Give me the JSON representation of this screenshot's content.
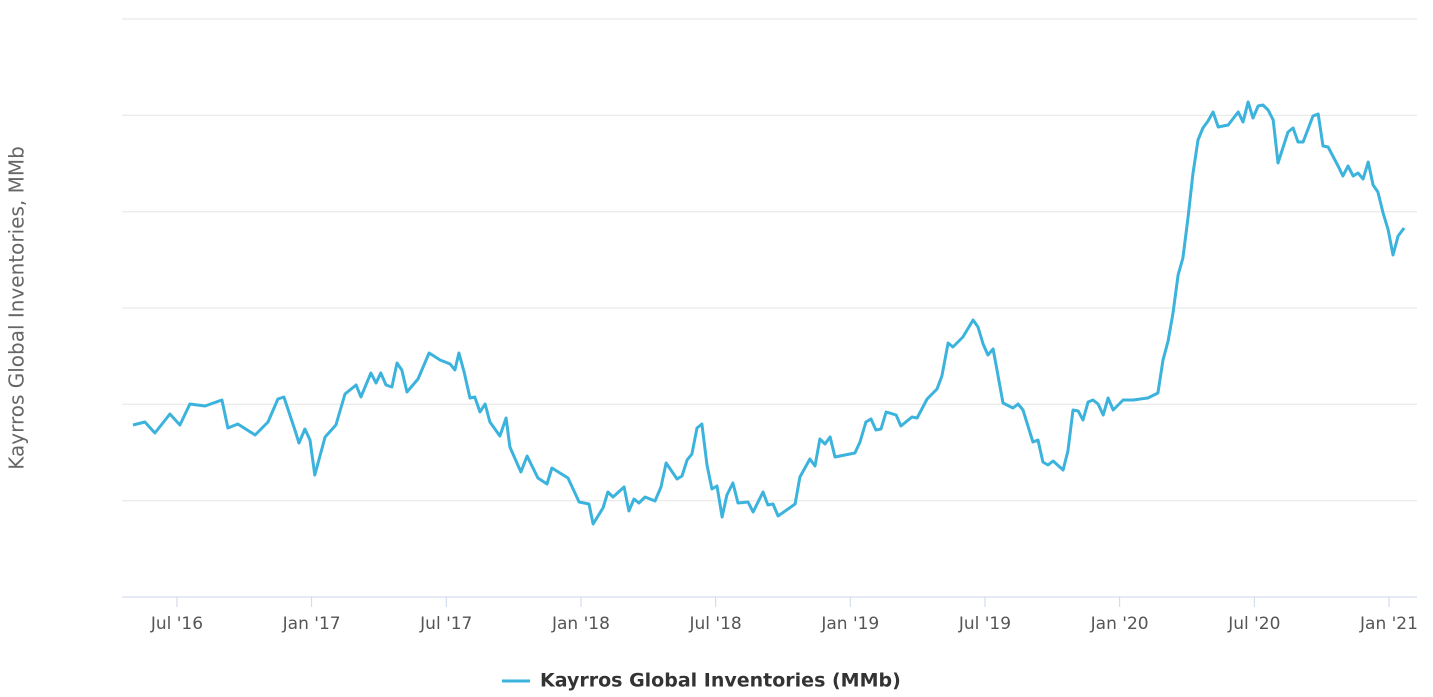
{
  "chart_data": {
    "type": "line",
    "y_label": "Kayrros Global Inventories, MMb",
    "xlim": [
      2016.296,
      2021.104
    ],
    "xticks": [
      {
        "value": 2016.5,
        "label": "Jul '16"
      },
      {
        "value": 2017.0,
        "label": "Jan '17"
      },
      {
        "value": 2017.5,
        "label": "Jul '17"
      },
      {
        "value": 2018.0,
        "label": "Jan '18"
      },
      {
        "value": 2018.5,
        "label": "Jul '18"
      },
      {
        "value": 2019.0,
        "label": "Jan '19"
      },
      {
        "value": 2019.5,
        "label": "Jul '19"
      },
      {
        "value": 2020.0,
        "label": "Jan '20"
      },
      {
        "value": 2020.5,
        "label": "Jul '20"
      },
      {
        "value": 2021.0,
        "label": "Jan '21"
      }
    ],
    "ylim": [
      0,
      578
    ],
    "yticks": [
      0,
      96.3,
      192.7,
      289,
      385.3,
      481.7,
      578
    ],
    "grid": true,
    "legend": "bottom",
    "x": [
      2016.337,
      2016.381,
      2016.418,
      2016.474,
      2016.511,
      2016.548,
      2016.604,
      2016.667,
      2016.689,
      2016.726,
      2016.79,
      2016.838,
      2016.875,
      2016.897,
      2016.938,
      2016.953,
      2016.975,
      2016.994,
      2017.012,
      2017.05,
      2017.09,
      2017.124,
      2017.165,
      2017.183,
      2017.22,
      2017.239,
      2017.257,
      2017.276,
      2017.298,
      2017.317,
      2017.335,
      2017.354,
      2017.395,
      2017.436,
      2017.477,
      2017.514,
      2017.532,
      2017.547,
      2017.566,
      2017.588,
      2017.606,
      2017.625,
      2017.644,
      2017.662,
      2017.699,
      2017.722,
      2017.736,
      2017.777,
      2017.8,
      2017.84,
      2017.874,
      2017.892,
      2017.952,
      2017.993,
      2018.03,
      2018.045,
      2018.082,
      2018.1,
      2018.119,
      2018.16,
      2018.178,
      2018.197,
      2018.215,
      2018.238,
      2018.275,
      2018.297,
      2018.316,
      2018.357,
      2018.375,
      2018.394,
      2018.412,
      2018.431,
      2018.449,
      2018.468,
      2018.486,
      2018.505,
      2018.524,
      2018.542,
      2018.564,
      2018.583,
      2018.62,
      2018.639,
      2018.676,
      2018.694,
      2018.713,
      2018.732,
      2018.795,
      2018.813,
      2018.85,
      2018.869,
      2018.887,
      2018.906,
      2018.925,
      2018.943,
      2018.98,
      2019.017,
      2019.036,
      2019.058,
      2019.077,
      2019.095,
      2019.114,
      2019.133,
      2019.17,
      2019.188,
      2019.229,
      2019.248,
      2019.285,
      2019.322,
      2019.34,
      2019.363,
      2019.381,
      2019.418,
      2019.456,
      2019.474,
      2019.493,
      2019.511,
      2019.53,
      2019.548,
      2019.567,
      2019.604,
      2019.623,
      2019.641,
      2019.678,
      2019.697,
      2019.715,
      2019.734,
      2019.753,
      2019.79,
      2019.808,
      2019.827,
      2019.846,
      2019.864,
      2019.883,
      2019.901,
      2019.92,
      2019.939,
      2019.957,
      2019.976,
      2020.013,
      2020.05,
      2020.105,
      2020.142,
      2020.161,
      2020.18,
      2020.198,
      2020.217,
      2020.235,
      2020.254,
      2020.272,
      2020.291,
      2020.309,
      2020.328,
      2020.347,
      2020.366,
      2020.403,
      2020.44,
      2020.458,
      2020.477,
      2020.495,
      2020.514,
      2020.532,
      2020.551,
      2020.57,
      2020.588,
      2020.625,
      2020.644,
      2020.662,
      2020.681,
      2020.718,
      2020.737,
      2020.755,
      2020.774,
      2020.811,
      2020.829,
      2020.848,
      2020.867,
      2020.885,
      2020.904,
      2020.923,
      2020.941,
      2020.959,
      2020.978,
      2020.997,
      2021.015,
      2021.034,
      2021.056
    ],
    "series": [
      {
        "name": "Kayrros Global Inventories (MMb)",
        "color": "#3bb3dc",
        "values": [
          172,
          175,
          164,
          183,
          172,
          193,
          191,
          197,
          169,
          173,
          162,
          175,
          198,
          200,
          167,
          154,
          168,
          157,
          122,
          160,
          172,
          203,
          212,
          200,
          224,
          214,
          224,
          212,
          210,
          234,
          227,
          205,
          218,
          244,
          237,
          233,
          227,
          244,
          225,
          199,
          200,
          185,
          193,
          175,
          161,
          179,
          150,
          125,
          141,
          119,
          113,
          129,
          119,
          95,
          93,
          73,
          89,
          105,
          100,
          110,
          86,
          98,
          94,
          100,
          96,
          110,
          134,
          118,
          121,
          137,
          143,
          169,
          173,
          132,
          108,
          111,
          80,
          102,
          114,
          94,
          95,
          85,
          105,
          92,
          93,
          81,
          93,
          120,
          138,
          131,
          158,
          153,
          160,
          140,
          142,
          144,
          155,
          175,
          178,
          167,
          168,
          185,
          182,
          171,
          180,
          179,
          198,
          208,
          221,
          254,
          250,
          260,
          277,
          270,
          253,
          242,
          248,
          222,
          194,
          189,
          193,
          187,
          155,
          157,
          135,
          132,
          136,
          127,
          146,
          187,
          186,
          177,
          195,
          197,
          193,
          182,
          199,
          187,
          197,
          197,
          199,
          204,
          237,
          256,
          284,
          322,
          339,
          380,
          423,
          457,
          469,
          476,
          485,
          470,
          472,
          485,
          475,
          495,
          479,
          491,
          492,
          487,
          477,
          434,
          465,
          469,
          455,
          455,
          481,
          483,
          451,
          450,
          431,
          421,
          431,
          421,
          424,
          418,
          435,
          412,
          405,
          384,
          367,
          342,
          361,
          369
        ]
      }
    ]
  }
}
